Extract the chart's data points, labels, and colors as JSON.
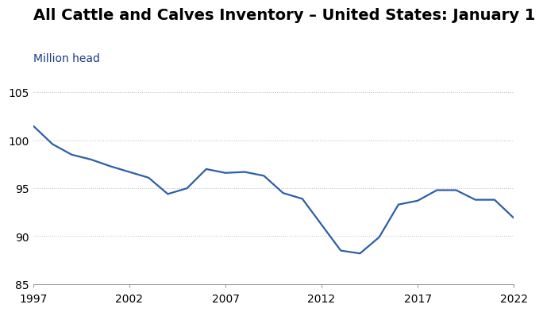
{
  "title": "All Cattle and Calves Inventory – United States: January 1",
  "subtitle": "Million head",
  "title_color": "#000000",
  "subtitle_color": "#1a3a8a",
  "line_color": "#2c5fa8",
  "line_width": 1.6,
  "background_color": "#ffffff",
  "years": [
    1997,
    1998,
    1999,
    2000,
    2001,
    2002,
    2003,
    2004,
    2005,
    2006,
    2007,
    2008,
    2009,
    2010,
    2011,
    2012,
    2013,
    2014,
    2015,
    2016,
    2017,
    2018,
    2019,
    2020,
    2021,
    2022
  ],
  "values": [
    101.5,
    99.6,
    98.5,
    98.0,
    97.3,
    96.7,
    96.1,
    94.4,
    95.0,
    97.0,
    96.6,
    96.7,
    96.3,
    94.5,
    93.9,
    91.2,
    88.5,
    88.2,
    89.9,
    93.3,
    93.7,
    94.8,
    94.8,
    93.8,
    93.8,
    91.9
  ],
  "xlim": [
    1997,
    2022
  ],
  "ylim": [
    85,
    105
  ],
  "yticks": [
    85,
    90,
    95,
    100,
    105
  ],
  "xticks": [
    1997,
    2002,
    2007,
    2012,
    2017,
    2022
  ],
  "grid_color": "#bbbbbb",
  "tick_label_fontsize": 10,
  "title_fontsize": 14,
  "subtitle_fontsize": 10
}
